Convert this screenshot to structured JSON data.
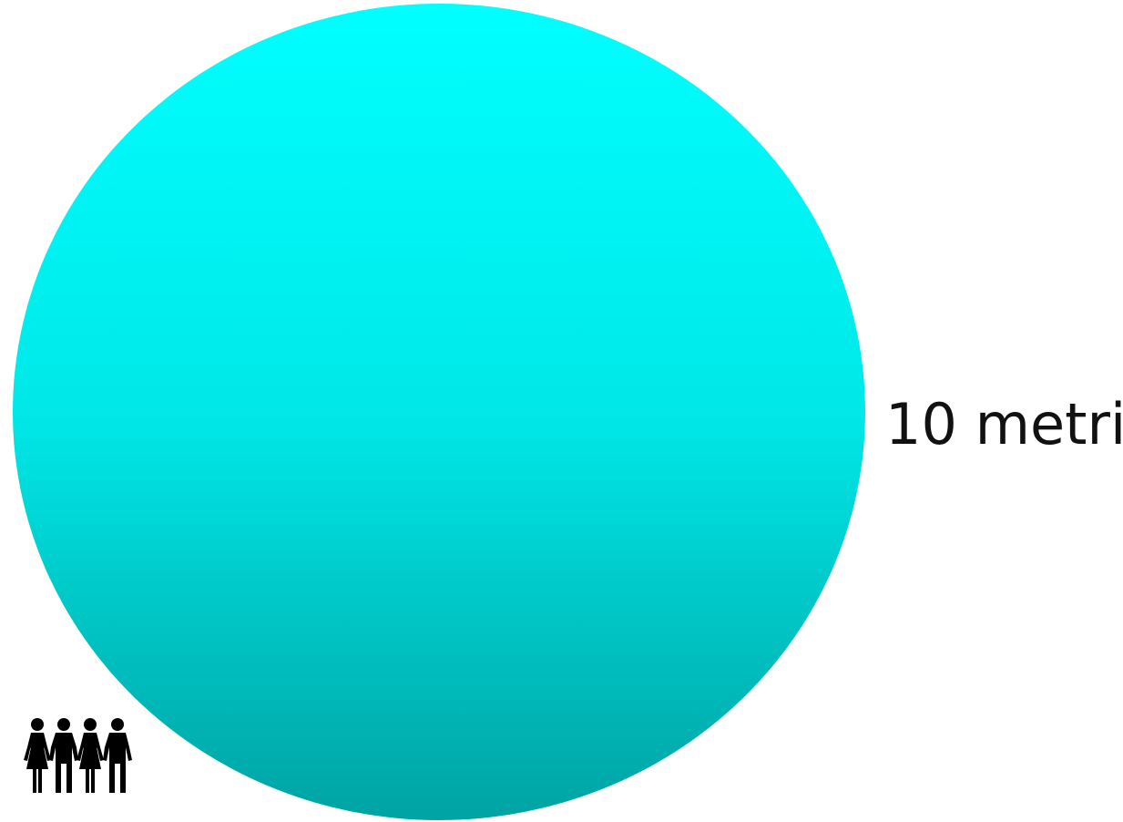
{
  "diagram": {
    "scale_label": "10 metri",
    "circle": {
      "gradient_top": "#00FFFF",
      "gradient_bottom": "#00A3A3"
    },
    "people": {
      "icon": "people-holding-hands-icon",
      "figures": [
        "woman",
        "man",
        "woman",
        "man"
      ],
      "color": "#000000"
    }
  }
}
